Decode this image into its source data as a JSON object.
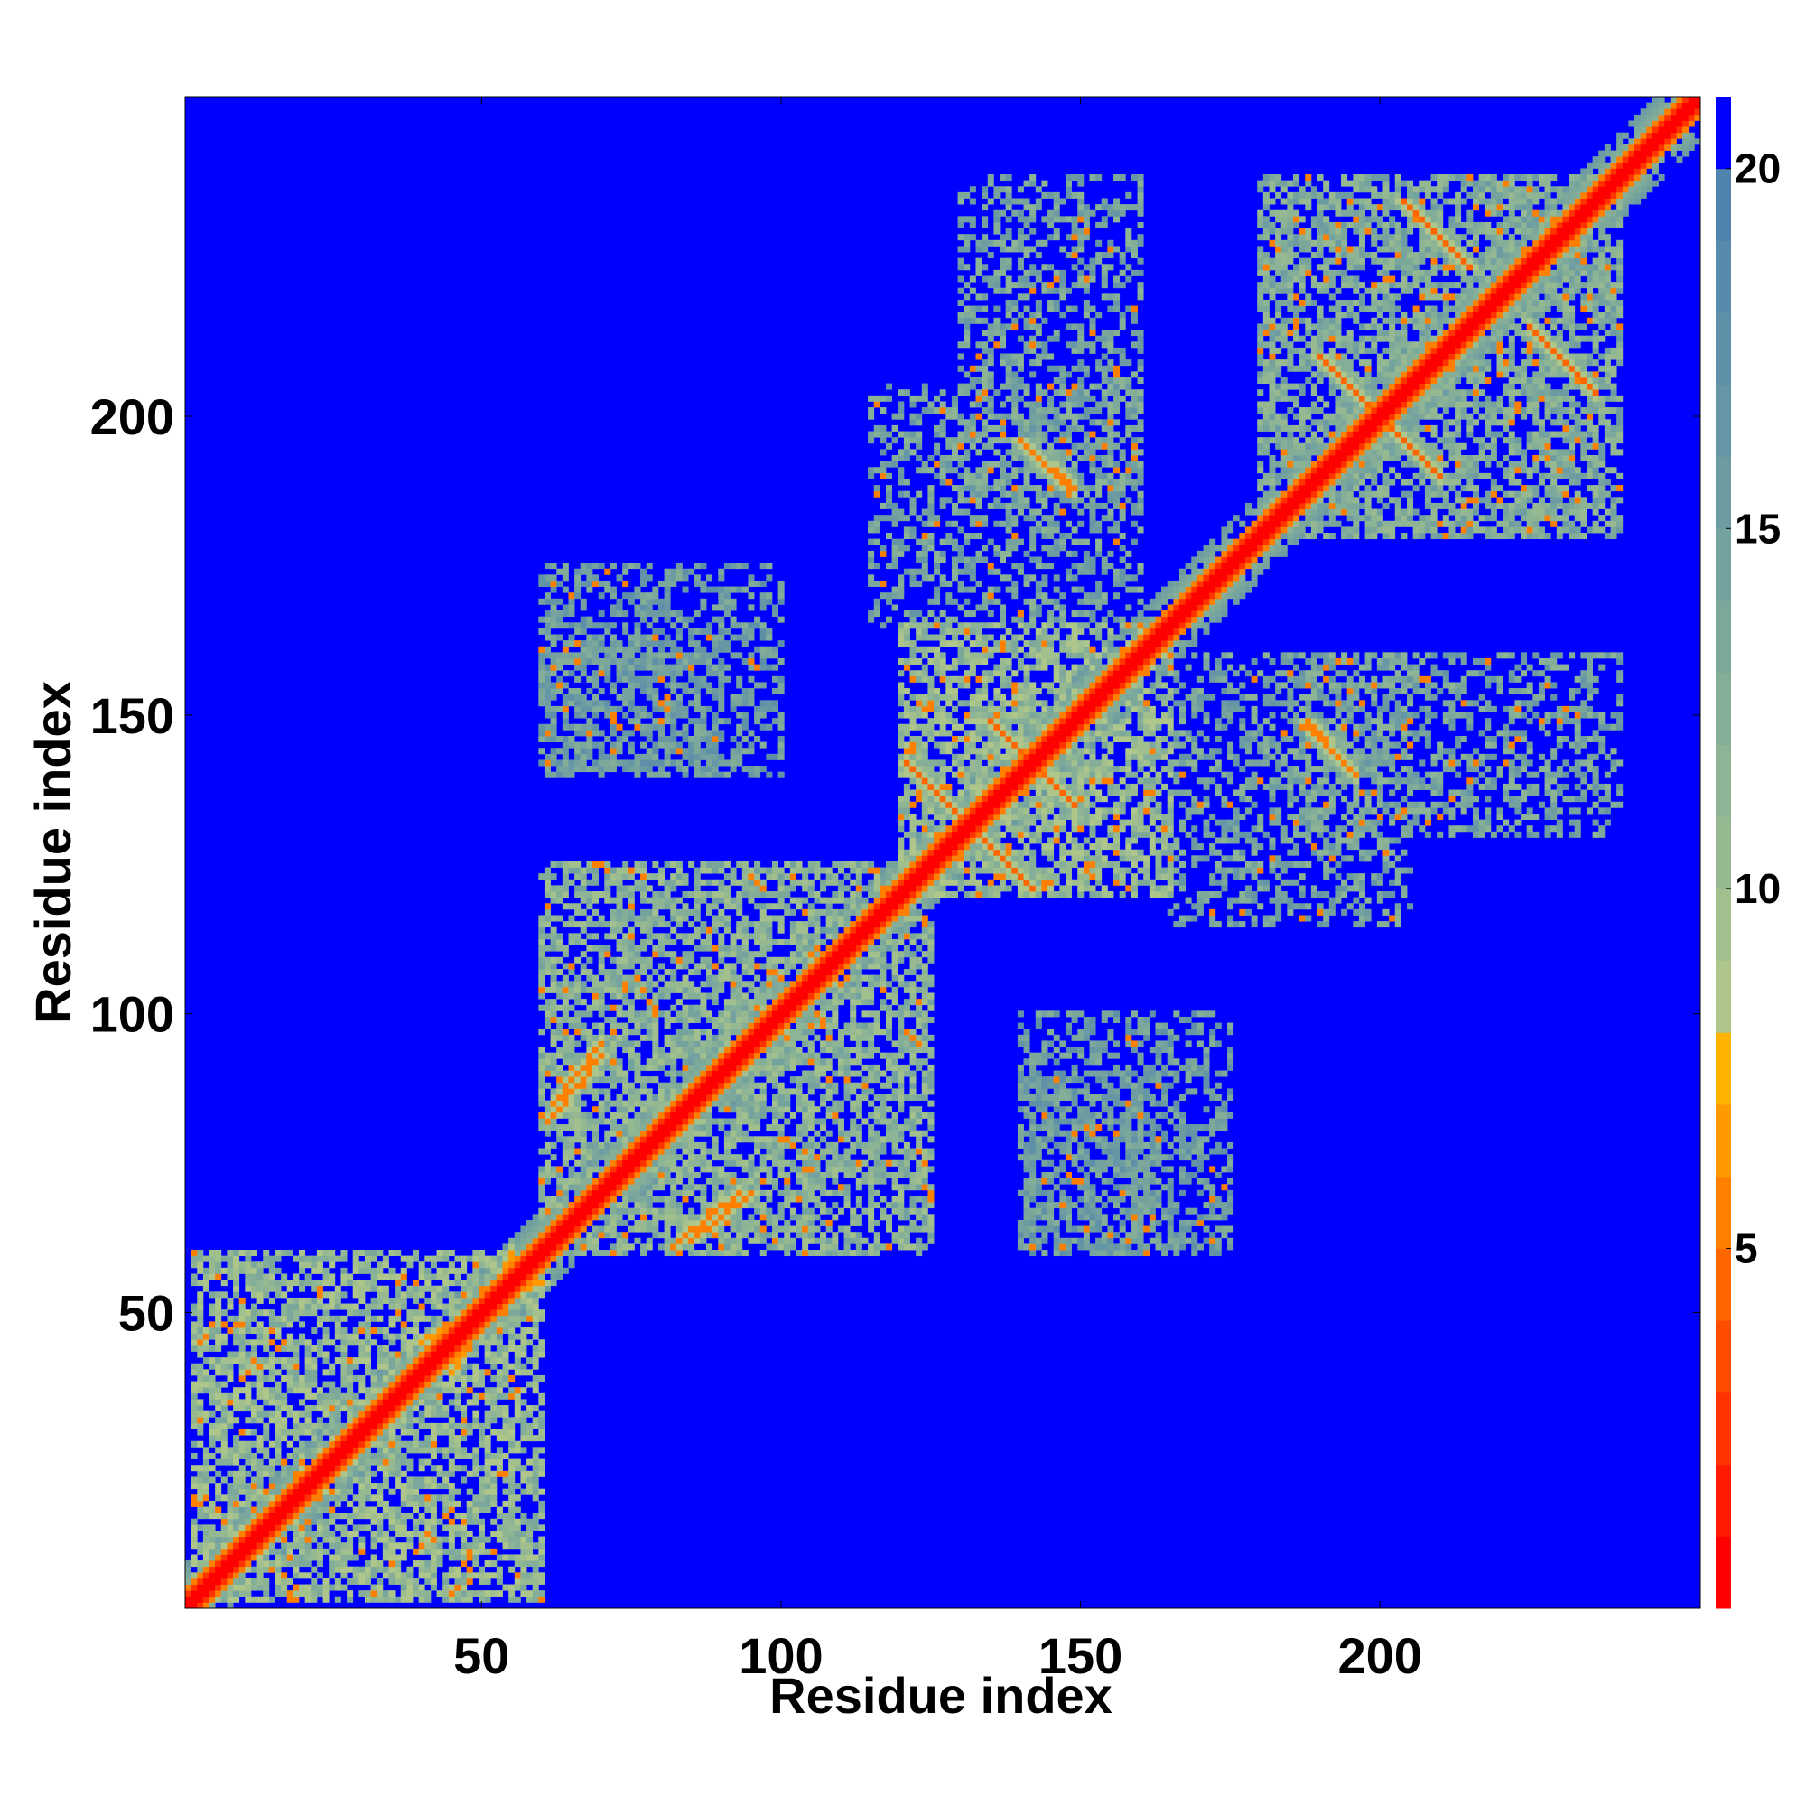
{
  "chart_data": {
    "type": "heatmap",
    "title": "",
    "xlabel": "Residue index",
    "ylabel": "Residue index",
    "xlim": [
      1,
      253
    ],
    "ylim": [
      1,
      253
    ],
    "x_ticks": [
      50,
      100,
      150,
      200
    ],
    "y_ticks": [
      50,
      100,
      150,
      200
    ],
    "colorbar": {
      "range": [
        0,
        21
      ],
      "ticks": [
        5,
        10,
        15,
        20
      ],
      "levels": [
        {
          "max": 1,
          "color": "#ff0000"
        },
        {
          "max": 2,
          "color": "#ff1a00"
        },
        {
          "max": 3,
          "color": "#ff3300"
        },
        {
          "max": 4,
          "color": "#ff4d00"
        },
        {
          "max": 5,
          "color": "#ff6600"
        },
        {
          "max": 6,
          "color": "#ff8000"
        },
        {
          "max": 7,
          "color": "#ff9900"
        },
        {
          "max": 8,
          "color": "#ffb300"
        },
        {
          "max": 9,
          "color": "#aec68a"
        },
        {
          "max": 10,
          "color": "#a2c08e"
        },
        {
          "max": 11,
          "color": "#97b991"
        },
        {
          "max": 12,
          "color": "#8db495"
        },
        {
          "max": 13,
          "color": "#84ae98"
        },
        {
          "max": 14,
          "color": "#7ca89c"
        },
        {
          "max": 15,
          "color": "#74a29f"
        },
        {
          "max": 16,
          "color": "#6c9ca2"
        },
        {
          "max": 17,
          "color": "#6596a5"
        },
        {
          "max": 18,
          "color": "#5e90a8"
        },
        {
          "max": 19,
          "color": "#578aab"
        },
        {
          "max": 20,
          "color": "#5084ae"
        },
        {
          "max": 21,
          "color": "#0000ff"
        }
      ]
    },
    "background_value": 21,
    "diagonal_value": 0,
    "contact_regions": [
      {
        "x": [
          2,
          60
        ],
        "y": [
          2,
          60
        ],
        "value": 11
      },
      {
        "x": [
          60,
          125
        ],
        "y": [
          60,
          125
        ],
        "value": 12
      },
      {
        "x": [
          120,
          165
        ],
        "y": [
          120,
          165
        ],
        "value": 11
      },
      {
        "x": [
          180,
          240
        ],
        "y": [
          180,
          240
        ],
        "value": 13
      },
      {
        "x": [
          115,
          160
        ],
        "y": [
          165,
          205
        ],
        "value": 14
      },
      {
        "x": [
          185,
          240
        ],
        "y": [
          130,
          160
        ],
        "value": 14
      },
      {
        "x": [
          140,
          175
        ],
        "y": [
          60,
          100
        ],
        "value": 15
      },
      {
        "x": [
          60,
          90
        ],
        "y": [
          140,
          165
        ],
        "value": 15
      }
    ],
    "strand_contacts": [
      {
        "x": [
          123,
          142
        ],
        "y": [
          140,
          121
        ],
        "value": 5
      },
      {
        "x": [
          135,
          148
        ],
        "y": [
          149,
          136
        ],
        "value": 5
      },
      {
        "x": [
          190,
          208
        ],
        "y": [
          210,
          192
        ],
        "value": 5
      },
      {
        "x": [
          204,
          215
        ],
        "y": [
          236,
          225
        ],
        "value": 5
      },
      {
        "x": [
          140,
          148
        ],
        "y": [
          196,
          188
        ],
        "value": 6
      },
      {
        "x": [
          188,
          193
        ],
        "y": [
          149,
          143
        ],
        "value": 6
      },
      {
        "x": [
          62,
          70
        ],
        "y": [
          83,
          93
        ],
        "value": 6
      },
      {
        "x": [
          85,
          95
        ],
        "y": [
          62,
          70
        ],
        "value": 6
      },
      {
        "x": [
          40,
          60
        ],
        "y": [
          45,
          55
        ],
        "value": 7
      }
    ]
  }
}
